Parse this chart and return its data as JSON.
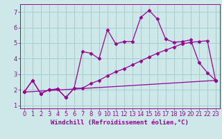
{
  "background_color": "#cce8e8",
  "grid_color": "#aacccc",
  "line_color": "#990099",
  "xlabel": "Windchill (Refroidissement éolien,°C)",
  "xlabel_fontsize": 6.5,
  "tick_fontsize": 6.0,
  "xlim": [
    -0.5,
    23.5
  ],
  "ylim": [
    0.8,
    7.5
  ],
  "yticks": [
    1,
    2,
    3,
    4,
    5,
    6,
    7
  ],
  "xticks": [
    0,
    1,
    2,
    3,
    4,
    5,
    6,
    7,
    8,
    9,
    10,
    11,
    12,
    13,
    14,
    15,
    16,
    17,
    18,
    19,
    20,
    21,
    22,
    23
  ],
  "series1": [
    [
      0,
      1.85
    ],
    [
      1,
      2.6
    ],
    [
      2,
      1.75
    ],
    [
      3,
      2.0
    ],
    [
      4,
      2.05
    ],
    [
      5,
      1.5
    ],
    [
      6,
      2.1
    ],
    [
      7,
      4.45
    ],
    [
      8,
      4.35
    ],
    [
      9,
      4.0
    ],
    [
      10,
      5.85
    ],
    [
      11,
      4.95
    ],
    [
      12,
      5.1
    ],
    [
      13,
      5.1
    ],
    [
      14,
      6.65
    ],
    [
      15,
      7.1
    ],
    [
      16,
      6.55
    ],
    [
      17,
      5.25
    ],
    [
      18,
      5.05
    ],
    [
      19,
      5.1
    ],
    [
      20,
      5.2
    ],
    [
      21,
      3.75
    ],
    [
      22,
      3.1
    ],
    [
      23,
      2.6
    ]
  ],
  "series2": [
    [
      0,
      1.85
    ],
    [
      1,
      2.6
    ],
    [
      2,
      1.75
    ],
    [
      3,
      2.0
    ],
    [
      4,
      2.05
    ],
    [
      5,
      1.5
    ],
    [
      6,
      2.1
    ],
    [
      7,
      2.1
    ],
    [
      8,
      2.4
    ],
    [
      9,
      2.6
    ],
    [
      10,
      2.9
    ],
    [
      11,
      3.15
    ],
    [
      12,
      3.35
    ],
    [
      13,
      3.6
    ],
    [
      14,
      3.85
    ],
    [
      15,
      4.1
    ],
    [
      16,
      4.35
    ],
    [
      17,
      4.55
    ],
    [
      18,
      4.75
    ],
    [
      19,
      4.95
    ],
    [
      20,
      5.05
    ],
    [
      21,
      5.1
    ],
    [
      22,
      5.15
    ],
    [
      23,
      2.6
    ]
  ],
  "series3": [
    [
      0,
      1.85
    ],
    [
      23,
      2.6
    ]
  ]
}
